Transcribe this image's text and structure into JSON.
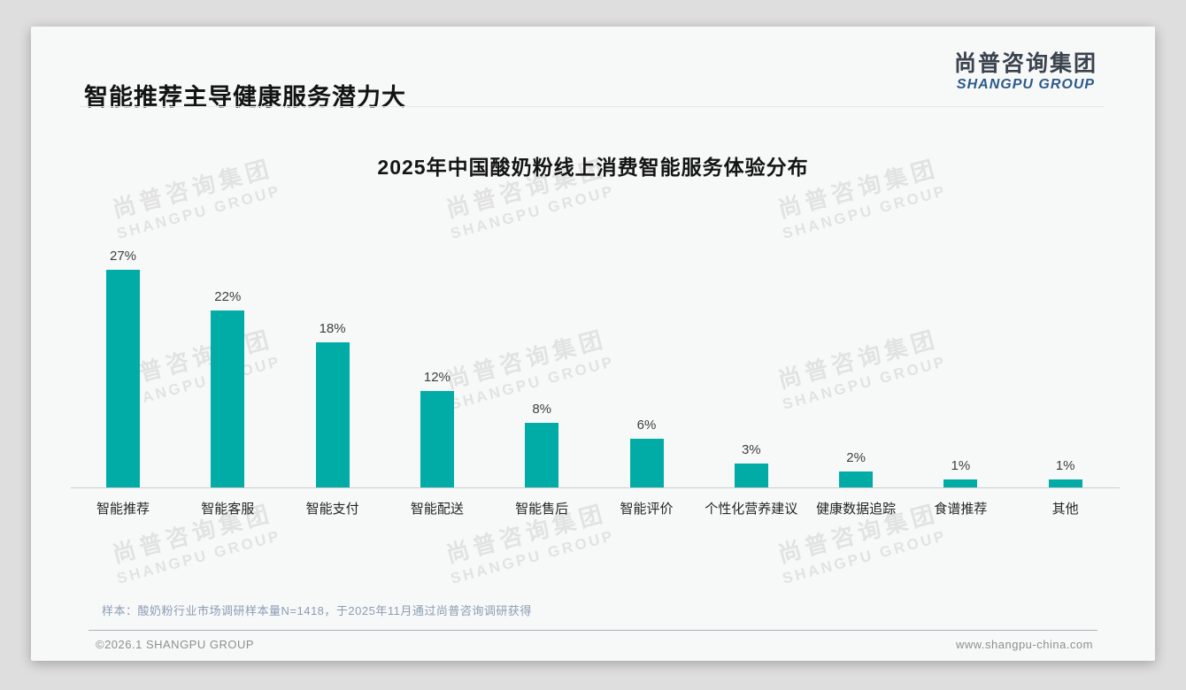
{
  "header": {
    "title": "智能推荐主导健康服务潜力大",
    "logo": {
      "cn": "尚普咨询集团",
      "en": "SHANGPU GROUP"
    }
  },
  "watermark": {
    "line1": "尚普咨询集团",
    "line2": "SHANGPU GROUP"
  },
  "chart_data": {
    "type": "bar",
    "title": "2025年中国酸奶粉线上消费智能服务体验分布",
    "categories": [
      "智能推荐",
      "智能客服",
      "智能支付",
      "智能配送",
      "智能售后",
      "智能评价",
      "个性化营养建议",
      "健康数据追踪",
      "食谱推荐",
      "其他"
    ],
    "values": [
      27,
      22,
      18,
      12,
      8,
      6,
      3,
      2,
      1,
      1
    ],
    "value_labels": [
      "27%",
      "22%",
      "18%",
      "12%",
      "8%",
      "6%",
      "3%",
      "2%",
      "1%",
      "1%"
    ],
    "unit": "%",
    "bar_color": "#01aca6",
    "xlabel": "",
    "ylabel": "",
    "ylim": [
      0,
      30
    ],
    "grid": false,
    "legend": "none"
  },
  "footnote": "样本：酸奶粉行业市场调研样本量N=1418，于2025年11月通过尚普咨询调研获得",
  "footer": {
    "copyright": "©2026.1 SHANGPU GROUP",
    "website": "www.shangpu-china.com"
  }
}
